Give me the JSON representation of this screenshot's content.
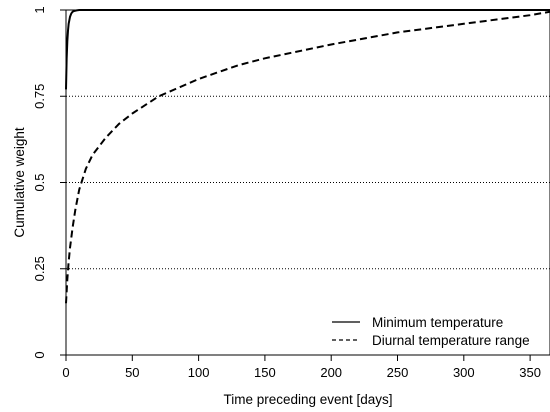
{
  "chart_data": {
    "type": "line",
    "title": "",
    "xlabel": "Time preceding event [days]",
    "ylabel": "Cumulative weight",
    "xlim": [
      0,
      365
    ],
    "ylim": [
      0,
      1
    ],
    "x_ticks": [
      0,
      50,
      100,
      150,
      200,
      250,
      300,
      350
    ],
    "y_ticks": [
      0,
      0.25,
      0.5,
      0.75,
      1
    ],
    "x_tick_labels": [
      "0",
      "50",
      "100",
      "150",
      "200",
      "250",
      "300",
      "350"
    ],
    "y_tick_labels": [
      "0",
      "0.25",
      "0.5",
      "0.75",
      "1"
    ],
    "reference_lines": {
      "style": "dotted",
      "y": [
        0.25,
        0.5,
        0.75,
        1
      ]
    },
    "legend": {
      "position": "bottom-right"
    },
    "series": [
      {
        "name": "Minimum temperature",
        "line_style": "solid",
        "color": "#000000",
        "x": [
          0,
          0.5,
          1,
          1.5,
          2,
          3,
          4,
          5,
          6,
          8,
          10,
          15,
          20,
          30,
          50,
          100,
          200,
          300,
          365
        ],
        "y": [
          0.77,
          0.86,
          0.91,
          0.94,
          0.96,
          0.98,
          0.99,
          0.995,
          0.997,
          0.999,
          1.0,
          1.0,
          1.0,
          1.0,
          1.0,
          1.0,
          1.0,
          1.0,
          1.0
        ]
      },
      {
        "name": "Diurnal temperature range",
        "line_style": "dashed",
        "color": "#000000",
        "x": [
          0,
          1,
          2,
          3,
          5,
          7,
          10,
          15,
          20,
          30,
          40,
          50,
          70,
          100,
          130,
          150,
          200,
          250,
          300,
          350,
          365
        ],
        "y": [
          0.15,
          0.22,
          0.27,
          0.31,
          0.37,
          0.42,
          0.48,
          0.54,
          0.58,
          0.63,
          0.67,
          0.7,
          0.75,
          0.8,
          0.84,
          0.86,
          0.9,
          0.935,
          0.96,
          0.985,
          0.995
        ]
      }
    ]
  }
}
